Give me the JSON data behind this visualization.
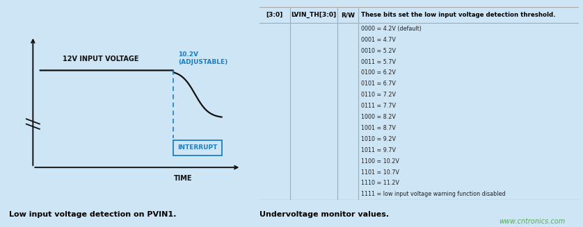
{
  "bg_color": "#cde5f5",
  "fig_width": 8.38,
  "fig_height": 3.27,
  "dpi": 100,
  "left_panel": {
    "title": "Low input voltage detection on PVIN1.",
    "label_12v": "12V INPUT VOLTAGE",
    "label_102v": "10.2V\n(ADJUSTABLE)",
    "label_interrupt": "INTERRUPT",
    "label_time": "TIME",
    "blue_color": "#1b7ec2",
    "line_color": "#111111"
  },
  "right_panel": {
    "title": "Undervoltage monitor values.",
    "col1_header": "[3:0]",
    "col2_header": "LVIN_TH[3:0]",
    "col3_header": "R/W",
    "col4_header": "These bits set the low input voltage detection threshold.",
    "rows": [
      "0000 = 4.2V (default)",
      "0001 = 4.7V",
      "0010 = 5.2V",
      "0011 = 5.7V",
      "0100 = 6.2V",
      "0101 = 6.7V",
      "0110 = 7.2V",
      "0111 = 7.7V",
      "1000 = 8.2V",
      "1001 = 8.7V",
      "1010 = 9.2V",
      "1011 = 9.7V",
      "1100 = 10.2V",
      "1101 = 10.7V",
      "1110 = 11.2V",
      "1111 = low input voltage warning function disabled"
    ],
    "watermark": "www.cntronics.com",
    "watermark_color": "#5aaa5a",
    "table_line_color": "#aaaaaa",
    "text_color": "#222222"
  }
}
